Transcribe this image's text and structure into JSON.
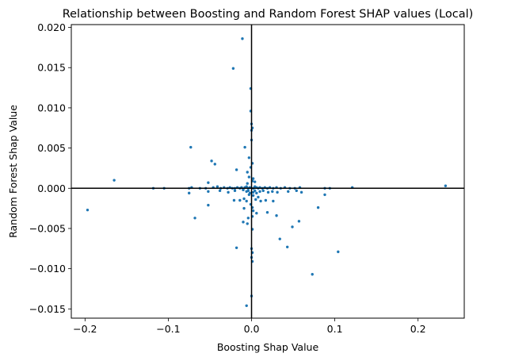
{
  "chart_data": {
    "type": "scatter",
    "title": "Relationship between Boosting and Random Forest SHAP values (Local)",
    "xlabel": "Boosting Shap Value",
    "ylabel": "Random Forest Shap Value",
    "xlim": [
      -0.2165,
      0.2555
    ],
    "ylim": [
      -0.01615,
      0.02035
    ],
    "xticks": [
      -0.2,
      -0.1,
      0.0,
      0.1,
      0.2
    ],
    "xtick_labels": [
      "−0.2",
      "−0.1",
      "0.0",
      "0.1",
      "0.2"
    ],
    "yticks": [
      -0.015,
      -0.01,
      -0.005,
      0.0,
      0.005,
      0.01,
      0.015,
      0.02
    ],
    "ytick_labels": [
      "−0.015",
      "−0.010",
      "−0.005",
      "0.000",
      "0.005",
      "0.010",
      "0.015",
      "0.020"
    ],
    "reference_lines": {
      "x": 0,
      "y": 0,
      "color": "#000000"
    },
    "grid": false,
    "marker_color": "#1f77b4",
    "points": [
      [
        -0.011,
        0.0186
      ],
      [
        -0.022,
        0.0149
      ],
      [
        -0.001,
        0.0124
      ],
      [
        -0.001,
        0.0096
      ],
      [
        0.0,
        0.008
      ],
      [
        0.001,
        0.0075
      ],
      [
        0.0,
        0.0072
      ],
      [
        0.0,
        0.006
      ],
      [
        -0.073,
        0.0051
      ],
      [
        -0.008,
        0.0051
      ],
      [
        -0.048,
        0.0034
      ],
      [
        -0.003,
        0.0038
      ],
      [
        -0.044,
        0.003
      ],
      [
        -0.018,
        0.0023
      ],
      [
        -0.001,
        0.0026
      ],
      [
        0.001,
        0.0031
      ],
      [
        -0.005,
        0.002
      ],
      [
        -0.003,
        0.0014
      ],
      [
        0.002,
        0.0012
      ],
      [
        0.004,
        0.0008
      ],
      [
        -0.165,
        0.001
      ],
      [
        -0.052,
        0.0007
      ],
      [
        -0.005,
        0.0006
      ],
      [
        0.001,
        0.0009
      ],
      [
        -0.118,
        0.0
      ],
      [
        -0.105,
        0.0
      ],
      [
        -0.075,
        0.0
      ],
      [
        -0.072,
        0.0001
      ],
      [
        -0.062,
        0.0
      ],
      [
        -0.055,
        0.0
      ],
      [
        -0.046,
        0.0001
      ],
      [
        -0.041,
        0.0002
      ],
      [
        -0.037,
        0.0
      ],
      [
        -0.033,
        0.0001
      ],
      [
        -0.029,
        0.0
      ],
      [
        -0.026,
        0.0001
      ],
      [
        -0.023,
        0.0
      ],
      [
        -0.02,
        0.0
      ],
      [
        -0.017,
        0.0001
      ],
      [
        -0.014,
        0.0
      ],
      [
        -0.012,
        0.0001
      ],
      [
        -0.01,
        -0.0001
      ],
      [
        -0.008,
        0.0001
      ],
      [
        -0.006,
        0.0002
      ],
      [
        -0.004,
        0.0
      ],
      [
        -0.002,
        0.0001
      ],
      [
        0.002,
        0.0
      ],
      [
        0.004,
        0.0002
      ],
      [
        0.006,
        0.0001
      ],
      [
        0.008,
        0.0
      ],
      [
        0.01,
        0.0001
      ],
      [
        0.013,
        0.0
      ],
      [
        0.016,
        0.0001
      ],
      [
        0.019,
        0.0
      ],
      [
        0.022,
        0.0001
      ],
      [
        0.026,
        0.0
      ],
      [
        0.03,
        0.0001
      ],
      [
        0.035,
        0.0
      ],
      [
        0.04,
        0.0001
      ],
      [
        0.046,
        0.0
      ],
      [
        0.052,
        0.0
      ],
      [
        0.058,
        0.0001
      ],
      [
        0.088,
        0.0
      ],
      [
        0.094,
        0.0
      ],
      [
        0.121,
        0.0001
      ],
      [
        0.233,
        0.0003
      ],
      [
        -0.01,
        -0.0002
      ],
      [
        -0.006,
        -0.0004
      ],
      [
        -0.004,
        -0.0003
      ],
      [
        -0.002,
        -0.0006
      ],
      [
        0.002,
        -0.0005
      ],
      [
        0.004,
        -0.0003
      ],
      [
        0.006,
        -0.0006
      ],
      [
        0.01,
        -0.0004
      ],
      [
        0.014,
        -0.0003
      ],
      [
        0.02,
        -0.0005
      ],
      [
        -0.075,
        -0.0006
      ],
      [
        -0.052,
        -0.0004
      ],
      [
        -0.038,
        -0.0003
      ],
      [
        -0.028,
        -0.0005
      ],
      [
        -0.02,
        -0.0003
      ],
      [
        0.025,
        -0.0004
      ],
      [
        0.031,
        -0.0005
      ],
      [
        0.044,
        -0.0004
      ],
      [
        0.054,
        -0.0003
      ],
      [
        0.06,
        -0.0005
      ],
      [
        0.088,
        -0.0008
      ],
      [
        -0.003,
        -0.0008
      ],
      [
        0.002,
        -0.0009
      ],
      [
        0.008,
        -0.0011
      ],
      [
        -0.021,
        -0.0015
      ],
      [
        -0.014,
        -0.0015
      ],
      [
        -0.009,
        -0.0013
      ],
      [
        -0.006,
        -0.0016
      ],
      [
        0.005,
        -0.0014
      ],
      [
        0.011,
        -0.0016
      ],
      [
        0.017,
        -0.0015
      ],
      [
        0.026,
        -0.0016
      ],
      [
        -0.052,
        -0.0021
      ],
      [
        -0.001,
        -0.002
      ],
      [
        0.001,
        -0.0024
      ],
      [
        0.08,
        -0.0024
      ],
      [
        -0.197,
        -0.0027
      ],
      [
        -0.009,
        -0.0025
      ],
      [
        0.002,
        -0.0028
      ],
      [
        0.006,
        -0.0031
      ],
      [
        0.019,
        -0.003
      ],
      [
        0.03,
        -0.0034
      ],
      [
        -0.068,
        -0.0037
      ],
      [
        0.001,
        -0.0035
      ],
      [
        -0.004,
        -0.0037
      ],
      [
        0.057,
        -0.0041
      ],
      [
        -0.01,
        -0.0042
      ],
      [
        -0.005,
        -0.0044
      ],
      [
        0.049,
        -0.0048
      ],
      [
        0.001,
        -0.0051
      ],
      [
        0.034,
        -0.0063
      ],
      [
        0.043,
        -0.0073
      ],
      [
        -0.018,
        -0.0074
      ],
      [
        0.0,
        -0.0075
      ],
      [
        0.001,
        -0.008
      ],
      [
        0.0,
        -0.0086
      ],
      [
        0.104,
        -0.0079
      ],
      [
        0.001,
        -0.0091
      ],
      [
        0.073,
        -0.0107
      ],
      [
        0.0,
        -0.0134
      ],
      [
        -0.006,
        -0.0146
      ]
    ]
  }
}
